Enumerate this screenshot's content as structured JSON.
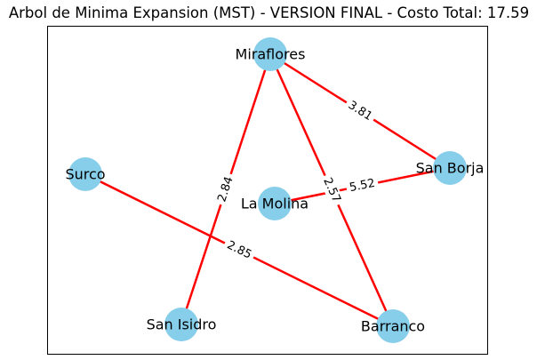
{
  "title": "Arbol de Minima Expansion (MST) - VERSION FINAL - Costo Total: 17.59",
  "colors": {
    "node": "#87CEEB",
    "edge": "#FF0000",
    "frame": "#000000",
    "background": "#FFFFFF"
  },
  "nodes": [
    {
      "id": "miraflores",
      "label": "Miraflores"
    },
    {
      "id": "san_borja",
      "label": "San Borja"
    },
    {
      "id": "surco",
      "label": "Surco"
    },
    {
      "id": "la_molina",
      "label": "La Molina"
    },
    {
      "id": "san_isidro",
      "label": "San Isidro"
    },
    {
      "id": "barranco",
      "label": "Barranco"
    }
  ],
  "edges": [
    {
      "from": "miraflores",
      "to": "san_borja",
      "weight": "3.81"
    },
    {
      "from": "miraflores",
      "to": "san_isidro",
      "weight": "2.84"
    },
    {
      "from": "miraflores",
      "to": "barranco",
      "weight": "2.57"
    },
    {
      "from": "la_molina",
      "to": "san_borja",
      "weight": "5.52"
    },
    {
      "from": "surco",
      "to": "barranco",
      "weight": "2.85"
    }
  ]
}
